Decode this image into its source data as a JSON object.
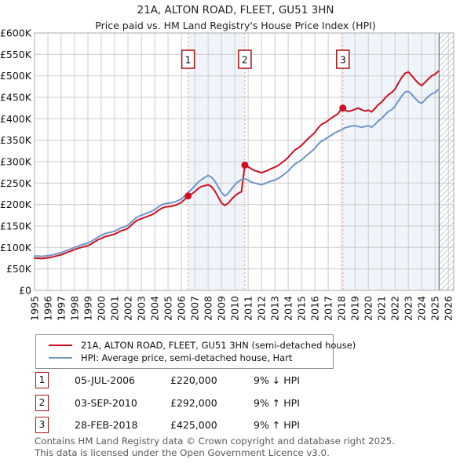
{
  "header": {
    "title": "21A, ALTON ROAD, FLEET, GU51 3HN",
    "subtitle": "Price paid vs. HM Land Registry's House Price Index (HPI)"
  },
  "chart_data": {
    "type": "line",
    "title": "Price paid vs. HPI",
    "xlabel": "",
    "ylabel": "",
    "xlim": [
      1995,
      2026.4
    ],
    "ylim": [
      0,
      600
    ],
    "units": "GBP thousands",
    "grid": true,
    "x_start": 1995,
    "x_step": 0.25,
    "x_ticks": [
      1995,
      1996,
      1997,
      1998,
      1999,
      2000,
      2001,
      2002,
      2003,
      2004,
      2005,
      2006,
      2007,
      2008,
      2009,
      2010,
      2011,
      2012,
      2013,
      2014,
      2015,
      2016,
      2017,
      2018,
      2019,
      2020,
      2021,
      2022,
      2023,
      2024,
      2025,
      2026
    ],
    "y_tick_values": [
      0,
      50,
      100,
      150,
      200,
      250,
      300,
      350,
      400,
      450,
      500,
      550,
      600
    ],
    "y_tick_labels": [
      "£0",
      "£50K",
      "£100K",
      "£150K",
      "£200K",
      "£250K",
      "£300K",
      "£350K",
      "£400K",
      "£450K",
      "£500K",
      "£550K",
      "£600K"
    ],
    "series": [
      {
        "name": "21A, ALTON ROAD, FLEET, GU51 3HN (semi-detached house)",
        "color": "#cc1122",
        "values": [
          75,
          75,
          74,
          75,
          76,
          77,
          79,
          81,
          83,
          86,
          89,
          92,
          95,
          98,
          100,
          102,
          104,
          108,
          113,
          118,
          121,
          125,
          127,
          129,
          131,
          135,
          139,
          141,
          145,
          152,
          159,
          164,
          167,
          170,
          173,
          176,
          180,
          186,
          191,
          194,
          195,
          196,
          198,
          201,
          205,
          212,
          220,
          224,
          230,
          237,
          242,
          244,
          246,
          242,
          232,
          218,
          204,
          198,
          203,
          212,
          220,
          226,
          230,
          292,
          288,
          283,
          279,
          277,
          274,
          277,
          280,
          284,
          287,
          291,
          297,
          303,
          310,
          319,
          327,
          332,
          338,
          346,
          354,
          361,
          368,
          379,
          387,
          391,
          396,
          402,
          407,
          412,
          425,
          420,
          417,
          419,
          422,
          425,
          421,
          418,
          420,
          416,
          424,
          433,
          439,
          448,
          456,
          461,
          469,
          483,
          496,
          506,
          509,
          501,
          491,
          483,
          477,
          485,
          493,
          500,
          504,
          511
        ]
      },
      {
        "name": "HPI: Average price, semi-detached house, Hart",
        "color": "#6f95c6",
        "values": [
          80,
          80,
          79,
          80,
          81,
          82,
          84,
          86,
          88,
          91,
          94,
          97,
          100,
          103,
          106,
          108,
          110,
          114,
          119,
          124,
          128,
          132,
          134,
          136,
          138,
          142,
          146,
          148,
          152,
          159,
          166,
          172,
          175,
          178,
          181,
          184,
          188,
          194,
          199,
          202,
          203,
          204,
          206,
          209,
          213,
          220,
          228,
          235,
          243,
          252,
          258,
          263,
          268,
          264,
          255,
          242,
          228,
          220,
          226,
          236,
          246,
          253,
          258,
          260,
          257,
          252,
          250,
          248,
          246,
          249,
          252,
          255,
          257,
          261,
          266,
          272,
          278,
          287,
          294,
          299,
          304,
          311,
          318,
          324,
          331,
          341,
          348,
          352,
          357,
          362,
          367,
          371,
          374,
          379,
          381,
          383,
          384,
          382,
          380,
          382,
          384,
          380,
          387,
          395,
          401,
          409,
          417,
          421,
          429,
          441,
          453,
          462,
          464,
          457,
          448,
          440,
          436,
          444,
          452,
          458,
          461,
          468
        ]
      }
    ],
    "sales": [
      {
        "label": "1",
        "x": 2006.5,
        "y": 220
      },
      {
        "label": "2",
        "x": 2010.75,
        "y": 292
      },
      {
        "label": "3",
        "x": 2018.1,
        "y": 425
      }
    ],
    "shaded_regions": [
      [
        2006.5,
        2010.75
      ],
      [
        2018.1,
        2026.4
      ]
    ],
    "hatch_from": 2025.3,
    "colors": {
      "shade": "#f0f4fb",
      "grid": "#cccccc",
      "border": "#aaaaaa",
      "dash": "#f09494",
      "dot": "#cc1122",
      "marker_border": "#aa1111",
      "hatch": "#c5cad3",
      "hatch_edge": "#555555",
      "tick_text": "#111111"
    },
    "legend_position": "bottom-left"
  },
  "legend": {
    "items": [
      "21A, ALTON ROAD, FLEET, GU51 3HN (semi-detached house)",
      "HPI: Average price, semi-detached house, Hart"
    ]
  },
  "table": {
    "rows": [
      {
        "num": "1",
        "date": "05-JUL-2006",
        "price": "£220,000",
        "hpi": "9% ↓ HPI"
      },
      {
        "num": "2",
        "date": "03-SEP-2010",
        "price": "£292,000",
        "hpi": "9% ↑ HPI"
      },
      {
        "num": "3",
        "date": "28-FEB-2018",
        "price": "£425,000",
        "hpi": "9% ↑ HPI"
      }
    ]
  },
  "footer": {
    "line1": "Contains HM Land Registry data © Crown copyright and database right 2025.",
    "line2": "This data is licensed under the Open Government Licence v3.0."
  }
}
